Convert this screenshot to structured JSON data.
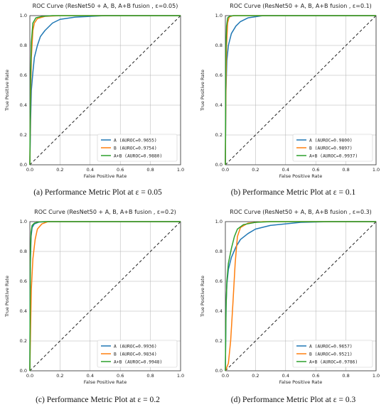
{
  "figure": {
    "captions": [
      "(a) Performance Metric Plot at ε = 0.05",
      "(b) Performance Metric Plot at ε = 0.1",
      "(c) Performance Metric Plot at ε = 0.2",
      "(d) Performance Metric Plot at ε = 0.3"
    ]
  },
  "chart_data": [
    {
      "type": "line",
      "title": "ROC Curve (ResNet50 + A, B, A+B fusion , ε=0.05)",
      "xlabel": "False Positive Rate",
      "ylabel": "True Positive Rate",
      "xlim": [
        0,
        1
      ],
      "ylim": [
        0,
        1
      ],
      "xticks": [
        "0.0",
        "0.2",
        "0.4",
        "0.6",
        "0.8",
        "1.0"
      ],
      "yticks": [
        "0.0",
        "0.2",
        "0.4",
        "0.6",
        "0.8",
        "1.0"
      ],
      "grid": true,
      "legend_position": "lower-right",
      "diagonal": true,
      "series": [
        {
          "name": "A",
          "legend": "A  (AUROC=0.9655)",
          "color": "#1f77b4",
          "points": [
            [
              0,
              0
            ],
            [
              0.005,
              0.3
            ],
            [
              0.01,
              0.5
            ],
            [
              0.02,
              0.62
            ],
            [
              0.03,
              0.72
            ],
            [
              0.05,
              0.8
            ],
            [
              0.07,
              0.86
            ],
            [
              0.1,
              0.9
            ],
            [
              0.15,
              0.95
            ],
            [
              0.2,
              0.975
            ],
            [
              0.3,
              0.99
            ],
            [
              0.5,
              1
            ],
            [
              1,
              1
            ]
          ]
        },
        {
          "name": "B",
          "legend": "B  (AUROC=0.9754)",
          "color": "#ff7f0e",
          "points": [
            [
              0,
              0
            ],
            [
              0.004,
              0.4
            ],
            [
              0.01,
              0.72
            ],
            [
              0.02,
              0.9
            ],
            [
              0.03,
              0.95
            ],
            [
              0.05,
              0.98
            ],
            [
              0.1,
              0.995
            ],
            [
              0.2,
              1
            ],
            [
              1,
              1
            ]
          ]
        },
        {
          "name": "A+B",
          "legend": "A+B (AUROC=0.9880)",
          "color": "#2ca02c",
          "points": [
            [
              0,
              0
            ],
            [
              0.004,
              0.55
            ],
            [
              0.01,
              0.82
            ],
            [
              0.02,
              0.95
            ],
            [
              0.04,
              0.985
            ],
            [
              0.08,
              0.995
            ],
            [
              0.15,
              1
            ],
            [
              1,
              1
            ]
          ]
        }
      ]
    },
    {
      "type": "line",
      "title": "ROC Curve (ResNet50 + A, B, A+B fusion , ε=0.1)",
      "xlabel": "False Positive Rate",
      "ylabel": "True Positive Rate",
      "xlim": [
        0,
        1
      ],
      "ylim": [
        0,
        1
      ],
      "xticks": [
        "0.0",
        "0.2",
        "0.4",
        "0.6",
        "0.8",
        "1.0"
      ],
      "yticks": [
        "0.0",
        "0.2",
        "0.4",
        "0.6",
        "0.8",
        "1.0"
      ],
      "grid": true,
      "legend_position": "lower-right",
      "diagonal": true,
      "series": [
        {
          "name": "A",
          "legend": "A  (AUROC=0.9800)",
          "color": "#1f77b4",
          "points": [
            [
              0,
              0
            ],
            [
              0.004,
              0.5
            ],
            [
              0.01,
              0.7
            ],
            [
              0.02,
              0.8
            ],
            [
              0.04,
              0.88
            ],
            [
              0.07,
              0.93
            ],
            [
              0.1,
              0.96
            ],
            [
              0.15,
              0.985
            ],
            [
              0.25,
              1
            ],
            [
              1,
              1
            ]
          ]
        },
        {
          "name": "B",
          "legend": "B  (AUROC=0.9897)",
          "color": "#ff7f0e",
          "points": [
            [
              0,
              0
            ],
            [
              0.003,
              0.45
            ],
            [
              0.008,
              0.8
            ],
            [
              0.015,
              0.95
            ],
            [
              0.025,
              0.99
            ],
            [
              0.05,
              1
            ],
            [
              1,
              1
            ]
          ]
        },
        {
          "name": "A+B",
          "legend": "A+B (AUROC=0.9937)",
          "color": "#2ca02c",
          "points": [
            [
              0,
              0
            ],
            [
              0.003,
              0.75
            ],
            [
              0.008,
              0.93
            ],
            [
              0.015,
              0.985
            ],
            [
              0.03,
              0.997
            ],
            [
              0.06,
              1
            ],
            [
              1,
              1
            ]
          ]
        }
      ]
    },
    {
      "type": "line",
      "title": "ROC Curve (ResNet50 + A, B, A+B fusion , ε=0.2)",
      "xlabel": "False Positive Rate",
      "ylabel": "True Positive Rate",
      "xlim": [
        0,
        1
      ],
      "ylim": [
        0,
        1
      ],
      "xticks": [
        "0.0",
        "0.2",
        "0.4",
        "0.6",
        "0.8",
        "1.0"
      ],
      "yticks": [
        "0.0",
        "0.2",
        "0.4",
        "0.6",
        "0.8",
        "1.0"
      ],
      "grid": true,
      "legend_position": "lower-right",
      "diagonal": true,
      "series": [
        {
          "name": "A",
          "legend": "A  (AUROC=0.9936)",
          "color": "#1f77b4",
          "points": [
            [
              0,
              0
            ],
            [
              0.003,
              0.7
            ],
            [
              0.008,
              0.9
            ],
            [
              0.015,
              0.96
            ],
            [
              0.03,
              0.985
            ],
            [
              0.06,
              0.997
            ],
            [
              0.12,
              1
            ],
            [
              1,
              1
            ]
          ]
        },
        {
          "name": "B",
          "legend": "B  (AUROC=0.9834)",
          "color": "#ff7f0e",
          "points": [
            [
              0,
              0
            ],
            [
              0.005,
              0.3
            ],
            [
              0.01,
              0.55
            ],
            [
              0.02,
              0.75
            ],
            [
              0.035,
              0.88
            ],
            [
              0.05,
              0.95
            ],
            [
              0.08,
              0.985
            ],
            [
              0.12,
              1
            ],
            [
              1,
              1
            ]
          ]
        },
        {
          "name": "A+B",
          "legend": "A+B (AUROC=0.9948)",
          "color": "#2ca02c",
          "points": [
            [
              0,
              0
            ],
            [
              0.003,
              0.75
            ],
            [
              0.008,
              0.93
            ],
            [
              0.015,
              0.975
            ],
            [
              0.03,
              0.99
            ],
            [
              0.06,
              0.998
            ],
            [
              0.1,
              1
            ],
            [
              1,
              1
            ]
          ]
        }
      ]
    },
    {
      "type": "line",
      "title": "ROC Curve (ResNet50 + A, B, A+B fusion , ε=0.3)",
      "xlabel": "False Positive Rate",
      "ylabel": "True Positive Rate",
      "xlim": [
        0,
        1
      ],
      "ylim": [
        0,
        1
      ],
      "xticks": [
        "0.0",
        "0.2",
        "0.4",
        "0.6",
        "0.8",
        "1.0"
      ],
      "yticks": [
        "0.0",
        "0.2",
        "0.4",
        "0.6",
        "0.8",
        "1.0"
      ],
      "grid": true,
      "legend_position": "lower-right",
      "diagonal": true,
      "series": [
        {
          "name": "A",
          "legend": "A  (AUROC=0.9657)",
          "color": "#1f77b4",
          "points": [
            [
              0,
              0
            ],
            [
              0.005,
              0.45
            ],
            [
              0.01,
              0.58
            ],
            [
              0.02,
              0.68
            ],
            [
              0.04,
              0.76
            ],
            [
              0.07,
              0.83
            ],
            [
              0.1,
              0.88
            ],
            [
              0.15,
              0.92
            ],
            [
              0.2,
              0.95
            ],
            [
              0.3,
              0.975
            ],
            [
              0.5,
              0.995
            ],
            [
              0.7,
              1
            ],
            [
              1,
              1
            ]
          ]
        },
        {
          "name": "B",
          "legend": "B  (AUROC=0.9521)",
          "color": "#ff7f0e",
          "points": [
            [
              0,
              0
            ],
            [
              0.02,
              0.05
            ],
            [
              0.035,
              0.2
            ],
            [
              0.05,
              0.45
            ],
            [
              0.065,
              0.72
            ],
            [
              0.08,
              0.9
            ],
            [
              0.1,
              0.96
            ],
            [
              0.15,
              0.99
            ],
            [
              0.25,
              1
            ],
            [
              1,
              1
            ]
          ]
        },
        {
          "name": "A+B",
          "legend": "A+B (AUROC=0.9786)",
          "color": "#2ca02c",
          "points": [
            [
              0,
              0
            ],
            [
              0.004,
              0.4
            ],
            [
              0.01,
              0.6
            ],
            [
              0.02,
              0.72
            ],
            [
              0.04,
              0.82
            ],
            [
              0.06,
              0.9
            ],
            [
              0.08,
              0.95
            ],
            [
              0.12,
              0.98
            ],
            [
              0.2,
              0.995
            ],
            [
              0.3,
              1
            ],
            [
              1,
              1
            ]
          ]
        }
      ]
    }
  ]
}
